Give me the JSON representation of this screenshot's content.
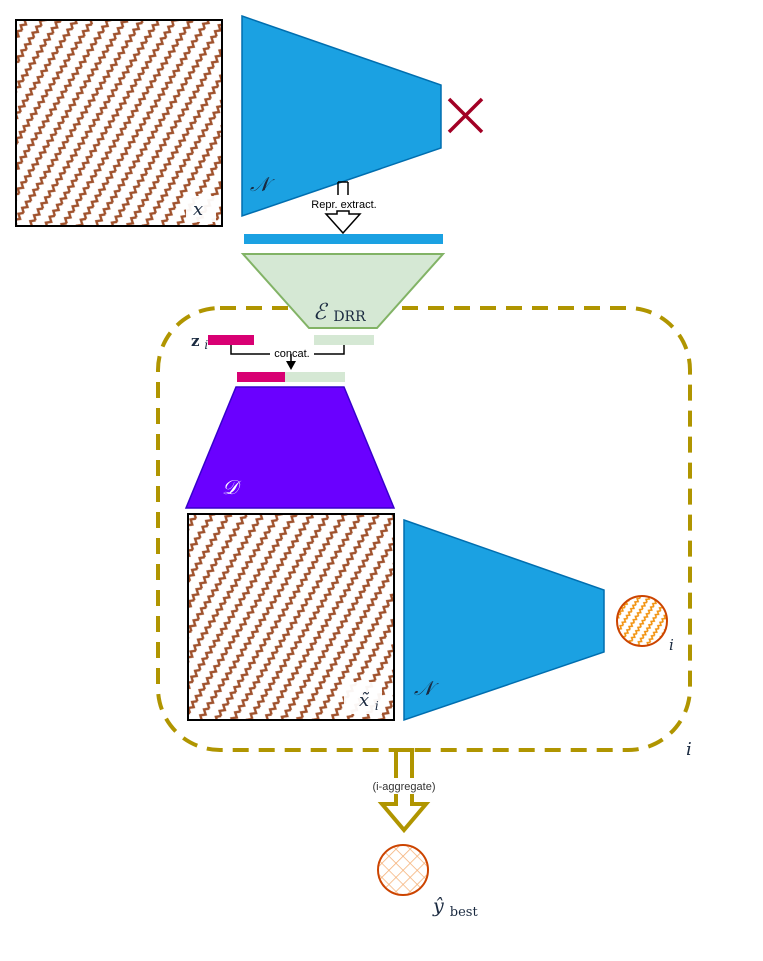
{
  "labels": {
    "input_x": "x",
    "network_top": "𝒩",
    "repr_extract": "Repr. extract.",
    "encoder": "ℰ",
    "encoder_sub": "DRR",
    "z_i": "z",
    "z_i_sub": "i",
    "concat": "concat.",
    "decoder": "𝒟",
    "x_tilde": "x̃",
    "x_tilde_sub": "i",
    "network_bottom": "𝒩",
    "pred_sub": "i",
    "loop_i": "i",
    "aggregate": "(i-aggregate)",
    "y_best": "ŷ",
    "y_best_sub": "best"
  },
  "colors": {
    "network": "#1ba1e2",
    "network_stroke": "#006eaf",
    "encoder": "#d5e8d4",
    "encoder_stroke": "#82b366",
    "decoder": "#6a00ff",
    "decoder_stroke": "#3700cc",
    "latent_z": "#d80073",
    "dashed_loop": "#b09500",
    "cross": "#a20025",
    "pattern": "#a0522d",
    "pred_fill": "#ffe6cc",
    "pred_stroke": "#d79b00",
    "best_stroke": "#cc4400"
  }
}
